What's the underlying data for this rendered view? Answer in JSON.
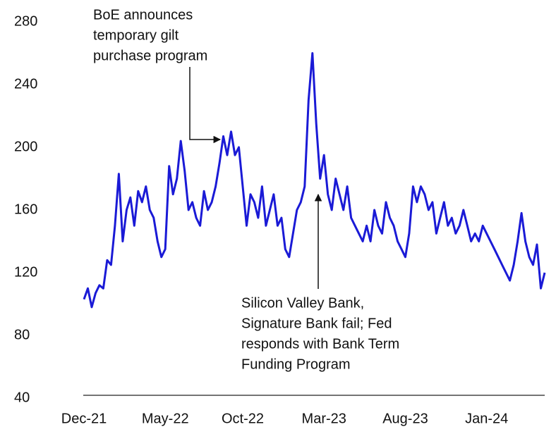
{
  "chart_data": {
    "type": "line",
    "categories": [
      "Dec-21",
      null,
      null,
      null,
      null,
      null,
      null,
      null,
      null,
      null,
      null,
      null,
      null,
      null,
      null,
      null,
      null,
      null,
      null,
      null,
      null,
      "May-22",
      null,
      null,
      null,
      null,
      null,
      null,
      null,
      null,
      null,
      null,
      null,
      null,
      null,
      null,
      null,
      null,
      null,
      null,
      null,
      "Oct-22",
      null,
      null,
      null,
      null,
      null,
      null,
      null,
      null,
      null,
      null,
      null,
      null,
      null,
      null,
      null,
      null,
      null,
      null,
      null,
      null,
      "Mar-23",
      null,
      null,
      null,
      null,
      null,
      null,
      null,
      null,
      null,
      null,
      null,
      null,
      null,
      null,
      null,
      null,
      null,
      null,
      null,
      null,
      "Aug-23",
      null,
      null,
      null,
      null,
      null,
      null,
      null,
      null,
      null,
      null,
      null,
      null,
      null,
      null,
      null,
      null,
      null,
      null,
      null,
      null,
      "Jan-24",
      null,
      null,
      null,
      null,
      null,
      null,
      null,
      null,
      null,
      null,
      null,
      null,
      null,
      null,
      null
    ],
    "series": [
      {
        "color": "#1a1ad6",
        "values": [
          103,
          110,
          98,
          107,
          112,
          110,
          128,
          125,
          150,
          183,
          140,
          160,
          168,
          150,
          172,
          165,
          175,
          160,
          155,
          140,
          130,
          135,
          188,
          170,
          180,
          204,
          185,
          160,
          165,
          155,
          150,
          172,
          160,
          165,
          175,
          190,
          207,
          195,
          210,
          195,
          200,
          175,
          150,
          170,
          165,
          155,
          175,
          150,
          160,
          170,
          150,
          155,
          135,
          130,
          145,
          160,
          165,
          175,
          230,
          260,
          215,
          180,
          195,
          170,
          160,
          180,
          170,
          160,
          175,
          155,
          150,
          145,
          140,
          150,
          140,
          160,
          150,
          145,
          165,
          155,
          150,
          140,
          135,
          130,
          145,
          175,
          165,
          175,
          170,
          160,
          165,
          145,
          155,
          165,
          150,
          155,
          145,
          150,
          160,
          150,
          140,
          145,
          140,
          150,
          145,
          140,
          135,
          130,
          125,
          120,
          115,
          125,
          140,
          158,
          140,
          130,
          125,
          138,
          110,
          120
        ]
      }
    ],
    "ylim": [
      40,
      280
    ],
    "yticks": [
      40,
      80,
      120,
      160,
      200,
      240,
      280
    ],
    "grid": false,
    "annotations": [
      {
        "lines": [
          "BoE announces",
          "temporary gilt",
          "purchase program"
        ]
      },
      {
        "lines": [
          "Silicon Valley Bank,",
          "Signature Bank fail; Fed",
          "responds with Bank Term",
          "Funding Program"
        ]
      }
    ]
  }
}
